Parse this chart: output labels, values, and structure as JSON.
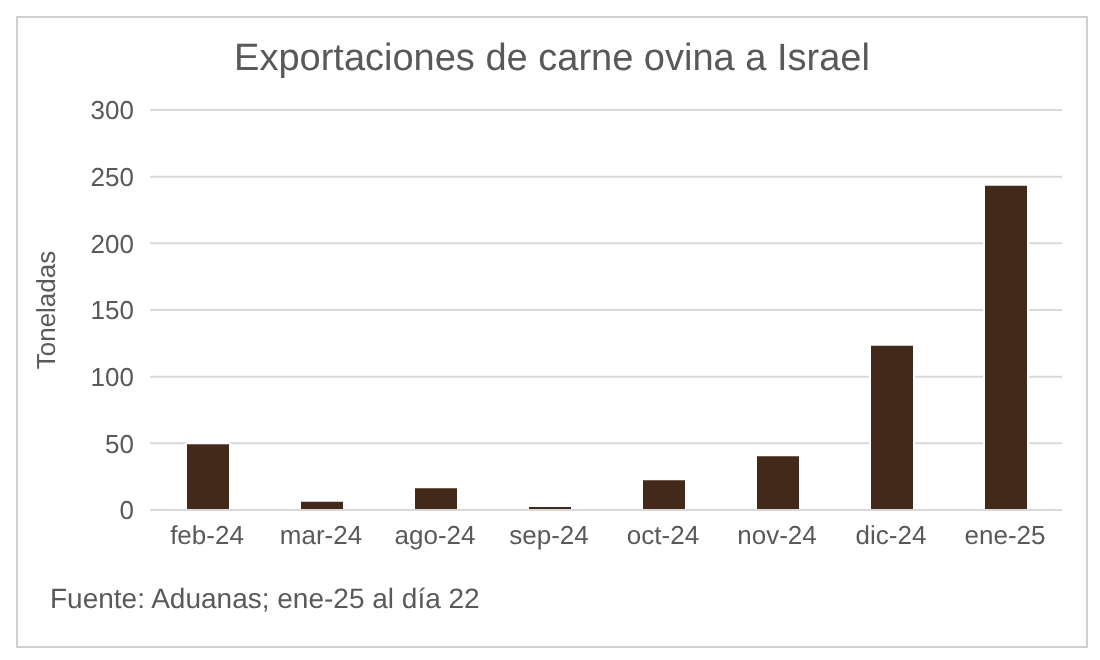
{
  "chart_data": {
    "type": "bar",
    "title": "Exportaciones de carne ovina a Israel",
    "ylabel": "Toneladas",
    "categories": [
      "feb-24",
      "mar-24",
      "ago-24",
      "sep-24",
      "oct-24",
      "nov-24",
      "dic-24",
      "ene-25"
    ],
    "values": [
      50,
      7,
      17,
      3,
      23,
      41,
      124,
      244
    ],
    "color": "#43291a",
    "ylim": [
      0,
      300
    ],
    "yticks": [
      0,
      50,
      100,
      150,
      200,
      250,
      300
    ],
    "grid": "y",
    "annotations": [
      "Fuente: Aduanas; ene-25  al día 22"
    ]
  }
}
